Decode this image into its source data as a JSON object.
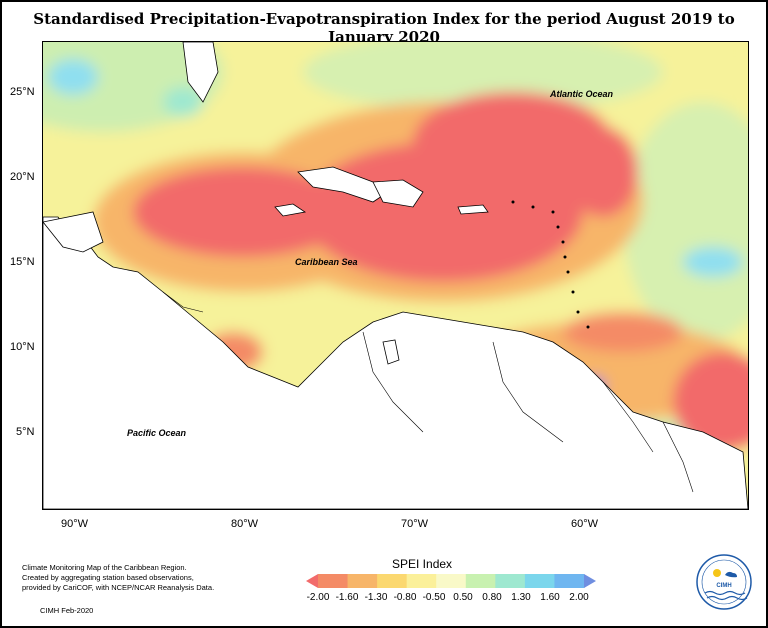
{
  "title": "Standardised Precipitation-Evapotranspiration Index for the period August 2019 to January 2020",
  "map": {
    "labels": {
      "atlantic": "Atlantic Ocean",
      "caribbean": "Caribbean Sea",
      "pacific": "Pacific Ocean"
    },
    "lat_ticks": [
      "25°N",
      "20°N",
      "15°N",
      "10°N",
      "5°N"
    ],
    "lon_ticks": [
      "90°W",
      "80°W",
      "70°W",
      "60°W"
    ]
  },
  "legend": {
    "title": "SPEI Index",
    "labels": [
      "-2.00",
      "-1.60",
      "-1.30",
      "-0.80",
      "-0.50",
      "0.50",
      "0.80",
      "1.30",
      "1.60",
      "2.00"
    ],
    "colors": [
      "#f26b6b",
      "#f48b66",
      "#f7b569",
      "#fbd870",
      "#fbf09a",
      "#f9f9c8",
      "#c8f1b0",
      "#9ee8d0",
      "#7bd6ec",
      "#6fb6f0",
      "#6f8ee0"
    ]
  },
  "credit": {
    "line1": "Climate Monitoring Map of the Caribbean Region.",
    "line2": "Created by aggregating station based observations,",
    "line3": "provided by CariCOF, with NCEP/NCAR Reanalysis Data.",
    "date": "CIMH Feb-2020"
  },
  "logo": {
    "text": "CIMH"
  }
}
